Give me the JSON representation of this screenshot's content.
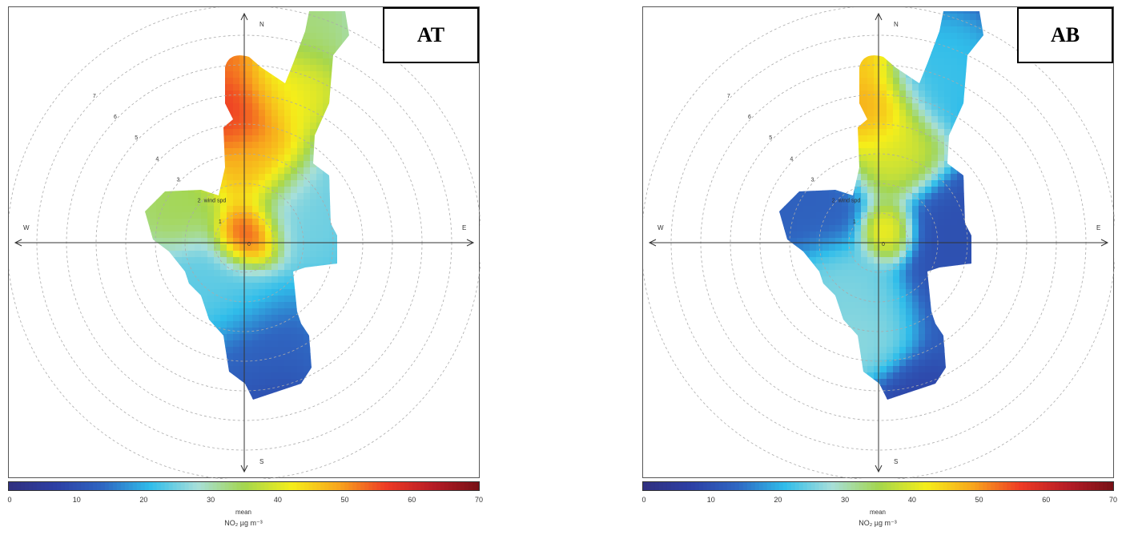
{
  "chart_data": [
    {
      "type": "heatmap",
      "title": "AT",
      "subtitle": "",
      "xlabel": "",
      "ylabel": "",
      "radial_axis_label": "wind spd",
      "radial_ticks": [
        1,
        2,
        3,
        4,
        5,
        6,
        7
      ],
      "compass_labels": [
        "N",
        "E",
        "S",
        "W"
      ],
      "center_label": "0",
      "colorbar": {
        "ticks": [
          0,
          10,
          20,
          30,
          40,
          50,
          60,
          70
        ],
        "range": [
          0,
          70
        ],
        "statistic": "mean",
        "unit": "NO₂ µg m⁻³"
      },
      "grid": true,
      "legend": "bottom",
      "blobs": [
        {
          "wind_speed": 0.3,
          "direction_deg": 30,
          "spread": 0.8,
          "value": 60
        },
        {
          "wind_speed": 4.5,
          "direction_deg": 355,
          "spread": 1.3,
          "value": 58
        },
        {
          "wind_speed": 6.5,
          "direction_deg": 355,
          "spread": 0.9,
          "value": 53
        },
        {
          "wind_speed": 2.5,
          "direction_deg": 5,
          "spread": 1.2,
          "value": 48
        },
        {
          "wind_speed": 5.5,
          "direction_deg": 15,
          "spread": 1.2,
          "value": 42
        },
        {
          "wind_speed": 7.5,
          "direction_deg": 15,
          "spread": 1.2,
          "value": 33
        },
        {
          "wind_speed": 2.5,
          "direction_deg": 300,
          "spread": 1.1,
          "value": 35
        },
        {
          "wind_speed": 2.0,
          "direction_deg": 60,
          "spread": 1.2,
          "value": 25
        },
        {
          "wind_speed": 2.0,
          "direction_deg": 210,
          "spread": 1.5,
          "value": 24
        },
        {
          "wind_speed": 4.0,
          "direction_deg": 175,
          "spread": 1.5,
          "value": 12
        },
        {
          "wind_speed": 6.0,
          "direction_deg": 170,
          "spread": 1.2,
          "value": 8
        },
        {
          "wind_speed": 9.0,
          "direction_deg": 180,
          "spread": 0.7,
          "value": 5
        }
      ],
      "background_value": 22
    },
    {
      "type": "heatmap",
      "title": "AB",
      "subtitle": "",
      "xlabel": "",
      "ylabel": "",
      "radial_axis_label": "wind spd",
      "radial_ticks": [
        1,
        2,
        3,
        4,
        5,
        6,
        7
      ],
      "compass_labels": [
        "N",
        "E",
        "S",
        "W"
      ],
      "center_label": "0",
      "colorbar": {
        "ticks": [
          0,
          10,
          20,
          30,
          40,
          50,
          60,
          70
        ],
        "range": [
          0,
          70
        ],
        "statistic": "mean",
        "unit": "NO₂ µg m⁻³"
      },
      "grid": true,
      "legend": "bottom",
      "blobs": [
        {
          "wind_speed": 0.5,
          "direction_deg": 40,
          "spread": 0.7,
          "value": 45
        },
        {
          "wind_speed": 4.5,
          "direction_deg": 355,
          "spread": 1.2,
          "value": 50
        },
        {
          "wind_speed": 6.5,
          "direction_deg": 355,
          "spread": 0.9,
          "value": 47
        },
        {
          "wind_speed": 3.0,
          "direction_deg": 10,
          "spread": 1.2,
          "value": 40
        },
        {
          "wind_speed": 6.0,
          "direction_deg": 20,
          "spread": 1.3,
          "value": 22
        },
        {
          "wind_speed": 2.5,
          "direction_deg": 300,
          "spread": 1.3,
          "value": 13
        },
        {
          "wind_speed": 2.0,
          "direction_deg": 220,
          "spread": 1.3,
          "value": 26
        },
        {
          "wind_speed": 3.5,
          "direction_deg": 195,
          "spread": 1.2,
          "value": 27
        },
        {
          "wind_speed": 2.5,
          "direction_deg": 80,
          "spread": 1.3,
          "value": 10
        },
        {
          "wind_speed": 6.0,
          "direction_deg": 170,
          "spread": 1.2,
          "value": 8
        },
        {
          "wind_speed": 9.0,
          "direction_deg": 180,
          "spread": 0.7,
          "value": 5
        }
      ],
      "background_value": 12
    }
  ],
  "colors": {
    "colormap": [
      "#30307f",
      "#2d3fa4",
      "#2f67c2",
      "#30bdea",
      "#a7dfda",
      "#a4d64e",
      "#f5ee1a",
      "#f8a51d",
      "#ee3b25",
      "#b61c26",
      "#751115"
    ],
    "axis": "#333333",
    "grid": "#aaaaaa"
  }
}
